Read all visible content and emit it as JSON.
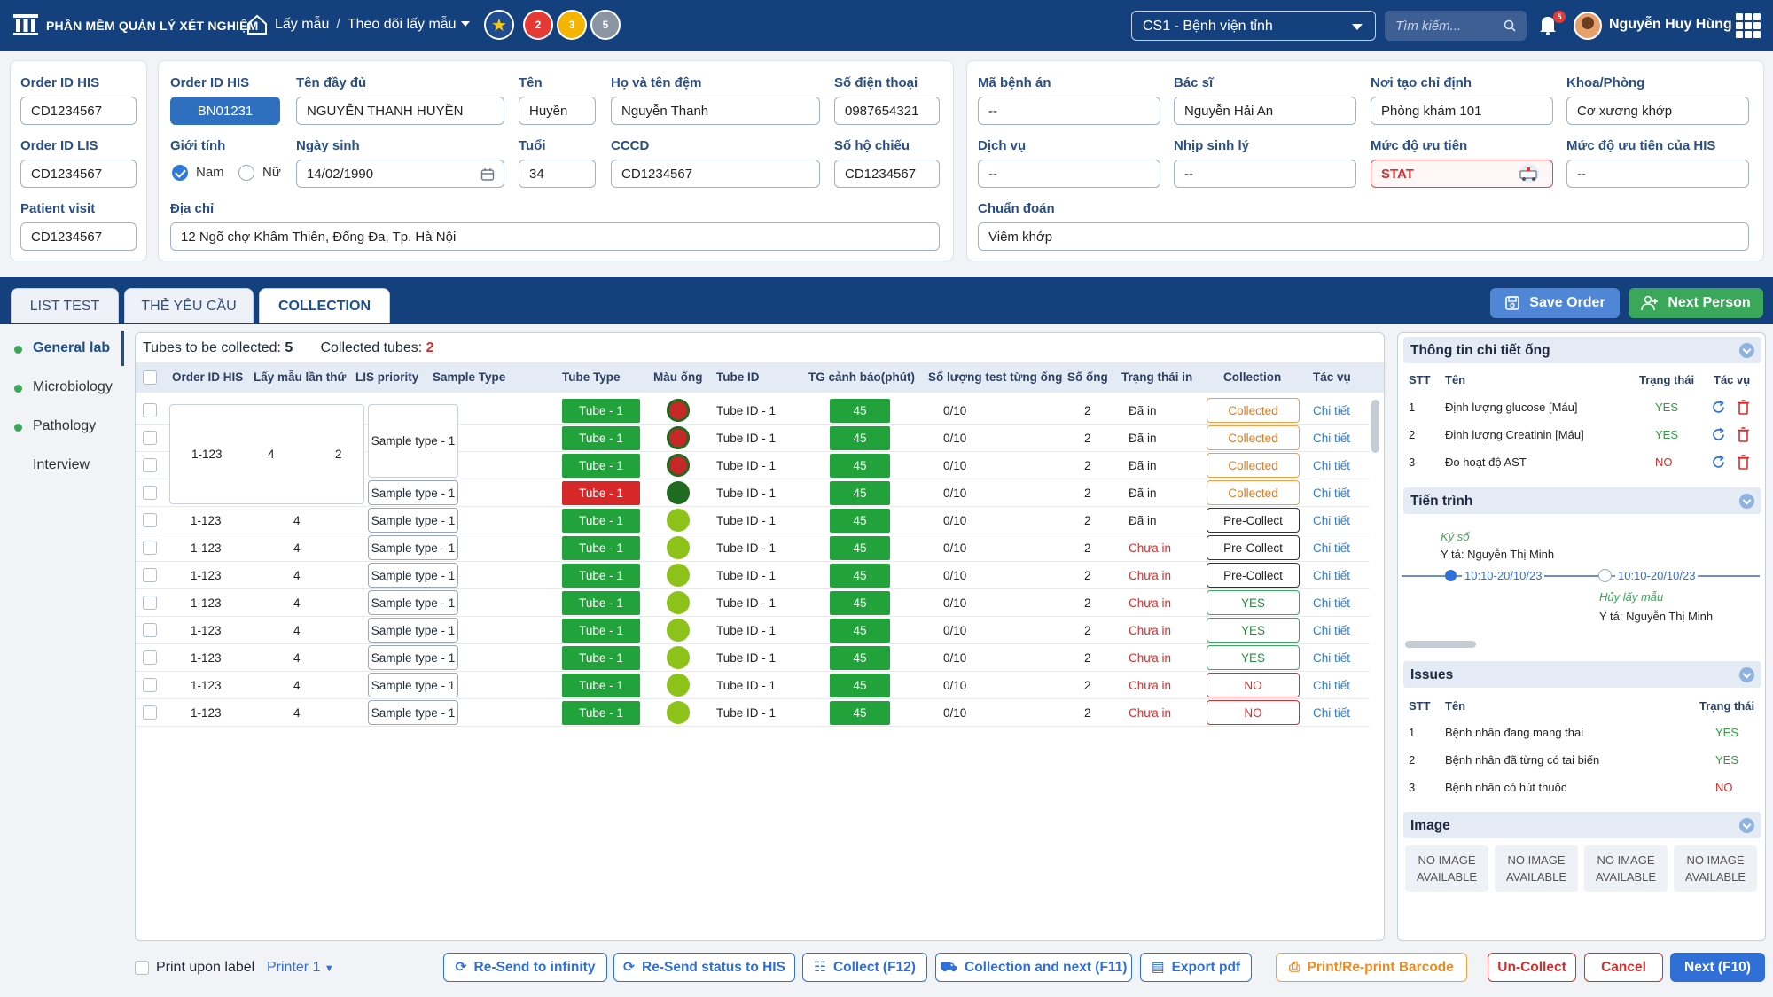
{
  "header": {
    "app_name": "PHẦN MỀM QUẢN LÝ XÉT NGHIỆM",
    "breadcrumb": [
      "Lấy mẫu",
      "Theo dõi lấy mẫu"
    ],
    "quick_badges": [
      "2",
      "3",
      "5"
    ],
    "site": "CS1 - Bệnh viện tỉnh",
    "search_placeholder": "Tìm kiếm...",
    "notification_count": "5",
    "user_name": "Nguyễn Huy Hùng",
    "brand_color": "#15407e"
  },
  "ids_card": {
    "order_id_his_label": "Order ID HIS",
    "order_id_his": "CD1234567",
    "order_id_lis_label": "Order ID LIS",
    "order_id_lis": "CD1234567",
    "patient_visit_label": "Patient visit",
    "patient_visit": "CD1234567"
  },
  "patient": {
    "order_id_his_label": "Order ID HIS",
    "order_id_his": "BN01231",
    "full_name_label": "Tên đầy đủ",
    "full_name": "NGUYỄN THANH HUYỀN",
    "first_name_label": "Tên",
    "first_name": "Huyền",
    "last_middle_label": "Họ và tên đệm",
    "last_middle": "Nguyễn Thanh",
    "phone_label": "Số điện thoại",
    "phone": "0987654321",
    "gender_label": "Giới tính",
    "gender_male": "Nam",
    "gender_female": "Nữ",
    "dob_label": "Ngày sinh",
    "dob": "14/02/1990",
    "age_label": "Tuổi",
    "age": "34",
    "cccd_label": "CCCD",
    "cccd": "CD1234567",
    "passport_label": "Số hộ chiếu",
    "passport": "CD1234567",
    "address_label": "Địa chỉ",
    "address": "12 Ngõ chợ Khâm Thiên, Đống Đa, Tp. Hà Nội"
  },
  "clinical": {
    "record_label": "Mã bệnh án",
    "record": "--",
    "doctor_label": "Bác sĩ",
    "doctor": "Nguyễn Hải An",
    "origin_label": "Nơi tạo chỉ định",
    "origin": "Phòng khám 101",
    "dept_label": "Khoa/Phòng",
    "dept": "Cơ xương khớp",
    "service_label": "Dịch vụ",
    "service": "--",
    "rhythm_label": "Nhịp sinh lý",
    "rhythm": "--",
    "priority_label": "Mức độ ưu tiên",
    "priority": "STAT",
    "his_priority_label": "Mức độ ưu tiên của HIS",
    "his_priority": "--",
    "diagnosis_label": "Chuẩn đoán",
    "diagnosis": "Viêm khớp"
  },
  "tabs": [
    "LIST TEST",
    "THẺ YÊU CẦU",
    "COLLECTION"
  ],
  "actions": {
    "save": "Save Order",
    "next_person": "Next Person"
  },
  "sidebar": [
    "General lab",
    "Microbiology",
    "Pathology",
    "Interview"
  ],
  "summary": {
    "to_collect_label": "Tubes to be collected:",
    "to_collect": "5",
    "collected_label": "Collected tubes:",
    "collected": "2"
  },
  "table": {
    "headers": [
      "Order ID HIS",
      "Lấy mẫu lần thứ",
      "LIS priority",
      "Sample Type",
      "Tube Type",
      "Màu ống",
      "Tube ID",
      "TG cảnh báo(phút)",
      "Số lượng test từng ống",
      "Số ống",
      "Trạng thái in",
      "Collection",
      "Tác vụ"
    ],
    "merged": {
      "order": "1-123",
      "times": "4",
      "priority": "2",
      "sample": "Sample type - 1"
    },
    "rows": [
      {
        "order": "",
        "times": "",
        "priority": "",
        "sample": "",
        "tube": "Tube - 1",
        "tube_color": "#21a23a",
        "ball": "red",
        "tube_id": "Tube ID - 1",
        "warn": "45",
        "qty": "0/10",
        "count": "2",
        "print": "Đã in",
        "collection": "Collected",
        "action": "Chi tiết"
      },
      {
        "order": "",
        "times": "",
        "priority": "",
        "sample": "",
        "tube": "Tube - 1",
        "tube_color": "#21a23a",
        "ball": "red",
        "tube_id": "Tube ID - 1",
        "warn": "45",
        "qty": "0/10",
        "count": "2",
        "print": "Đã in",
        "collection": "Collected",
        "action": "Chi tiết"
      },
      {
        "order": "",
        "times": "",
        "priority": "",
        "sample": "",
        "tube": "Tube - 1",
        "tube_color": "#21a23a",
        "ball": "red",
        "tube_id": "Tube ID - 1",
        "warn": "45",
        "qty": "0/10",
        "count": "2",
        "print": "Đã in",
        "collection": "Collected",
        "action": "Chi tiết"
      },
      {
        "order": "",
        "times": "",
        "priority": "",
        "sample": "Sample type - 1",
        "tube": "Tube - 1",
        "tube_color": "#d62828",
        "ball": "darkgreen",
        "tube_id": "Tube ID - 1",
        "warn": "45",
        "qty": "0/10",
        "count": "2",
        "print": "Đã in",
        "collection": "Collected",
        "action": "Chi tiết"
      },
      {
        "order": "1-123",
        "times": "4",
        "priority": "2",
        "sample": "Sample type - 1",
        "tube": "Tube - 1",
        "tube_color": "#21a23a",
        "ball": "lime",
        "tube_id": "Tube ID - 1",
        "warn": "45",
        "qty": "0/10",
        "count": "2",
        "print": "Đã in",
        "collection": "Pre-Collect",
        "action": "Chi tiết"
      },
      {
        "order": "1-123",
        "times": "4",
        "priority": "2",
        "sample": "Sample type - 1",
        "tube": "Tube - 1",
        "tube_color": "#21a23a",
        "ball": "lime",
        "tube_id": "Tube ID - 1",
        "warn": "45",
        "qty": "0/10",
        "count": "2",
        "print": "Chưa in",
        "collection": "Pre-Collect",
        "action": "Chi tiết"
      },
      {
        "order": "1-123",
        "times": "4",
        "priority": "2",
        "sample": "Sample type - 1",
        "tube": "Tube - 1",
        "tube_color": "#21a23a",
        "ball": "lime",
        "tube_id": "Tube ID - 1",
        "warn": "45",
        "qty": "0/10",
        "count": "2",
        "print": "Chưa in",
        "collection": "Pre-Collect",
        "action": "Chi tiết"
      },
      {
        "order": "1-123",
        "times": "4",
        "priority": "2",
        "sample": "Sample type - 1",
        "tube": "Tube - 1",
        "tube_color": "#21a23a",
        "ball": "lime",
        "tube_id": "Tube ID - 1",
        "warn": "45",
        "qty": "0/10",
        "count": "2",
        "print": "Chưa in",
        "collection": "YES",
        "action": "Chi tiết"
      },
      {
        "order": "1-123",
        "times": "4",
        "priority": "2",
        "sample": "Sample type - 1",
        "tube": "Tube - 1",
        "tube_color": "#21a23a",
        "ball": "lime",
        "tube_id": "Tube ID - 1",
        "warn": "45",
        "qty": "0/10",
        "count": "2",
        "print": "Chưa in",
        "collection": "YES",
        "action": "Chi tiết"
      },
      {
        "order": "1-123",
        "times": "4",
        "priority": "2",
        "sample": "Sample type - 1",
        "tube": "Tube - 1",
        "tube_color": "#21a23a",
        "ball": "lime",
        "tube_id": "Tube ID - 1",
        "warn": "45",
        "qty": "0/10",
        "count": "2",
        "print": "Chưa in",
        "collection": "YES",
        "action": "Chi tiết"
      },
      {
        "order": "1-123",
        "times": "4",
        "priority": "2",
        "sample": "Sample type - 1",
        "tube": "Tube - 1",
        "tube_color": "#21a23a",
        "ball": "lime",
        "tube_id": "Tube ID - 1",
        "warn": "45",
        "qty": "0/10",
        "count": "2",
        "print": "Chưa in",
        "collection": "NO",
        "action": "Chi tiết"
      },
      {
        "order": "1-123",
        "times": "4",
        "priority": "2",
        "sample": "Sample type - 1",
        "tube": "Tube - 1",
        "tube_color": "#21a23a",
        "ball": "lime",
        "tube_id": "Tube ID - 1",
        "warn": "45",
        "qty": "0/10",
        "count": "2",
        "print": "Chưa in",
        "collection": "NO",
        "action": "Chi tiết"
      }
    ]
  },
  "tube_detail": {
    "title": "Thông tin chi tiết ống",
    "headers": [
      "STT",
      "Tên",
      "Trạng thái",
      "Tác vụ"
    ],
    "rows": [
      {
        "stt": "1",
        "name": "Định lượng glucose [Máu]",
        "status": "YES"
      },
      {
        "stt": "2",
        "name": "Định lượng Creatinin [Máu]",
        "status": "YES"
      },
      {
        "stt": "3",
        "name": "Đo hoạt độ AST",
        "status": "NO"
      }
    ]
  },
  "progress": {
    "title": "Tiến trình",
    "step1_title": "Ký số",
    "step1_who": "Y tá: Nguyễn Thị Minh",
    "step1_time": "10:10-20/10/23",
    "step2_title": "Hủy lấy mẫu",
    "step2_who": "Y tá: Nguyễn Thị Minh",
    "step2_time": "10:10-20/10/23"
  },
  "issues": {
    "title": "Issues",
    "headers": [
      "STT",
      "Tên",
      "Trạng thái"
    ],
    "rows": [
      {
        "stt": "1",
        "name": "Bệnh nhân đang mang thai",
        "status": "YES"
      },
      {
        "stt": "2",
        "name": "Bệnh nhân đã từng có tai biến",
        "status": "YES"
      },
      {
        "stt": "3",
        "name": "Bệnh nhân có hút thuốc",
        "status": "NO"
      }
    ]
  },
  "image": {
    "title": "Image",
    "placeholder": "NO IMAGE AVAILABLE"
  },
  "footer": {
    "print_label": "Print upon label",
    "printer": "Printer 1",
    "resend_infinity": "Re-Send to infinity",
    "resend_his": "Re-Send status to HIS",
    "collect": "Collect (F12)",
    "collect_next": "Collection and next (F11)",
    "export": "Export pdf",
    "print_barcode": "Print/Re-print Barcode",
    "uncollect": "Un-Collect",
    "cancel": "Cancel",
    "next": "Next (F10)"
  }
}
